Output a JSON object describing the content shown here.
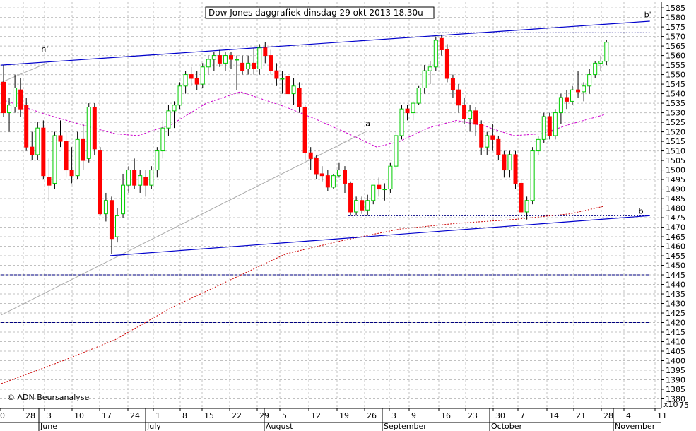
{
  "chart_data": {
    "type": "candlestick",
    "title": "Dow Jones daggrafiek dinsdag 29 okt 2013 18.30u",
    "copyright": "© ADN Beursanalyse",
    "y_multiplier_label": "x10",
    "y_scale_extra_label": "75",
    "ylim": [
      1375,
      1588
    ],
    "y_ticks": [
      1380,
      1385,
      1390,
      1395,
      1400,
      1405,
      1410,
      1415,
      1420,
      1425,
      1430,
      1435,
      1440,
      1445,
      1450,
      1455,
      1460,
      1465,
      1470,
      1475,
      1480,
      1485,
      1490,
      1495,
      1500,
      1505,
      1510,
      1515,
      1520,
      1525,
      1530,
      1535,
      1540,
      1545,
      1550,
      1555,
      1560,
      1565,
      1570,
      1575,
      1580,
      1585
    ],
    "x_day_labels": [
      "0",
      "28",
      "3",
      "10",
      "17",
      "24",
      "1",
      "8",
      "15",
      "22",
      "29",
      "5",
      "12",
      "19",
      "26",
      "3",
      "9",
      "16",
      "23",
      "30",
      "7",
      "14",
      "21",
      "28",
      "4",
      "11"
    ],
    "x_month_labels": [
      "June",
      "July",
      "August",
      "September",
      "October",
      "November"
    ],
    "trendline_labels": [
      "n'",
      "b'",
      "a",
      "b"
    ],
    "grid": true,
    "colors": {
      "up_candle": "#00cc00",
      "down_candle": "#ff0000",
      "trend_channel": "#0000cc",
      "ma_short": "#cc00cc",
      "ma_long": "#cc0000",
      "support_line": "#000080",
      "trend_a": "#aaaaaa"
    },
    "candles": [
      {
        "o": 1546,
        "h": 1555,
        "l": 1528,
        "c": 1530
      },
      {
        "o": 1530,
        "h": 1538,
        "l": 1520,
        "c": 1534
      },
      {
        "o": 1533,
        "h": 1550,
        "l": 1530,
        "c": 1543
      },
      {
        "o": 1542,
        "h": 1548,
        "l": 1528,
        "c": 1532
      },
      {
        "o": 1534,
        "h": 1538,
        "l": 1510,
        "c": 1512
      },
      {
        "o": 1512,
        "h": 1520,
        "l": 1505,
        "c": 1508
      },
      {
        "o": 1508,
        "h": 1525,
        "l": 1505,
        "c": 1522
      },
      {
        "o": 1522,
        "h": 1526,
        "l": 1495,
        "c": 1497
      },
      {
        "o": 1496,
        "h": 1506,
        "l": 1484,
        "c": 1492
      },
      {
        "o": 1493,
        "h": 1520,
        "l": 1490,
        "c": 1518
      },
      {
        "o": 1518,
        "h": 1526,
        "l": 1512,
        "c": 1515
      },
      {
        "o": 1515,
        "h": 1520,
        "l": 1496,
        "c": 1500
      },
      {
        "o": 1500,
        "h": 1512,
        "l": 1493,
        "c": 1497
      },
      {
        "o": 1497,
        "h": 1520,
        "l": 1495,
        "c": 1516
      },
      {
        "o": 1516,
        "h": 1524,
        "l": 1500,
        "c": 1505
      },
      {
        "o": 1506,
        "h": 1535,
        "l": 1504,
        "c": 1533
      },
      {
        "o": 1533,
        "h": 1535,
        "l": 1508,
        "c": 1511
      },
      {
        "o": 1510,
        "h": 1512,
        "l": 1476,
        "c": 1477
      },
      {
        "o": 1477,
        "h": 1488,
        "l": 1473,
        "c": 1484
      },
      {
        "o": 1484,
        "h": 1486,
        "l": 1456,
        "c": 1464
      },
      {
        "o": 1465,
        "h": 1480,
        "l": 1462,
        "c": 1476
      },
      {
        "o": 1477,
        "h": 1498,
        "l": 1475,
        "c": 1492
      },
      {
        "o": 1492,
        "h": 1502,
        "l": 1488,
        "c": 1500
      },
      {
        "o": 1500,
        "h": 1506,
        "l": 1490,
        "c": 1492
      },
      {
        "o": 1492,
        "h": 1500,
        "l": 1488,
        "c": 1497
      },
      {
        "o": 1496,
        "h": 1500,
        "l": 1486,
        "c": 1492
      },
      {
        "o": 1492,
        "h": 1502,
        "l": 1490,
        "c": 1500
      },
      {
        "o": 1500,
        "h": 1512,
        "l": 1496,
        "c": 1510
      },
      {
        "o": 1510,
        "h": 1526,
        "l": 1506,
        "c": 1522
      },
      {
        "o": 1522,
        "h": 1534,
        "l": 1518,
        "c": 1531
      },
      {
        "o": 1531,
        "h": 1536,
        "l": 1522,
        "c": 1534
      },
      {
        "o": 1534,
        "h": 1546,
        "l": 1532,
        "c": 1544
      },
      {
        "o": 1544,
        "h": 1552,
        "l": 1540,
        "c": 1550
      },
      {
        "o": 1550,
        "h": 1554,
        "l": 1544,
        "c": 1548
      },
      {
        "o": 1548,
        "h": 1552,
        "l": 1542,
        "c": 1545
      },
      {
        "o": 1545,
        "h": 1556,
        "l": 1543,
        "c": 1554
      },
      {
        "o": 1554,
        "h": 1560,
        "l": 1550,
        "c": 1558
      },
      {
        "o": 1558,
        "h": 1562,
        "l": 1552,
        "c": 1560
      },
      {
        "o": 1560,
        "h": 1563,
        "l": 1554,
        "c": 1556
      },
      {
        "o": 1556,
        "h": 1562,
        "l": 1552,
        "c": 1560
      },
      {
        "o": 1560,
        "h": 1562,
        "l": 1553,
        "c": 1558
      },
      {
        "o": 1558,
        "h": 1560,
        "l": 1542,
        "c": 1558
      },
      {
        "o": 1556,
        "h": 1560,
        "l": 1550,
        "c": 1552
      },
      {
        "o": 1553,
        "h": 1560,
        "l": 1550,
        "c": 1556
      },
      {
        "o": 1556,
        "h": 1564,
        "l": 1550,
        "c": 1553
      },
      {
        "o": 1553,
        "h": 1566,
        "l": 1550,
        "c": 1564
      },
      {
        "o": 1564,
        "h": 1567,
        "l": 1556,
        "c": 1560
      },
      {
        "o": 1560,
        "h": 1563,
        "l": 1550,
        "c": 1552
      },
      {
        "o": 1552,
        "h": 1556,
        "l": 1544,
        "c": 1548
      },
      {
        "o": 1548,
        "h": 1552,
        "l": 1540,
        "c": 1548
      },
      {
        "o": 1549,
        "h": 1552,
        "l": 1536,
        "c": 1540
      },
      {
        "o": 1540,
        "h": 1548,
        "l": 1534,
        "c": 1544
      },
      {
        "o": 1543,
        "h": 1546,
        "l": 1530,
        "c": 1533
      },
      {
        "o": 1533,
        "h": 1534,
        "l": 1505,
        "c": 1509
      },
      {
        "o": 1509,
        "h": 1512,
        "l": 1500,
        "c": 1506
      },
      {
        "o": 1506,
        "h": 1508,
        "l": 1495,
        "c": 1498
      },
      {
        "o": 1498,
        "h": 1502,
        "l": 1494,
        "c": 1497
      },
      {
        "o": 1497,
        "h": 1500,
        "l": 1489,
        "c": 1491
      },
      {
        "o": 1491,
        "h": 1498,
        "l": 1490,
        "c": 1497
      },
      {
        "o": 1497,
        "h": 1504,
        "l": 1496,
        "c": 1500
      },
      {
        "o": 1500,
        "h": 1502,
        "l": 1488,
        "c": 1493
      },
      {
        "o": 1493,
        "h": 1494,
        "l": 1476,
        "c": 1478
      },
      {
        "o": 1478,
        "h": 1486,
        "l": 1476,
        "c": 1484
      },
      {
        "o": 1484,
        "h": 1486,
        "l": 1477,
        "c": 1479
      },
      {
        "o": 1479,
        "h": 1487,
        "l": 1476,
        "c": 1484
      },
      {
        "o": 1484,
        "h": 1492,
        "l": 1482,
        "c": 1492
      },
      {
        "o": 1492,
        "h": 1496,
        "l": 1486,
        "c": 1490
      },
      {
        "o": 1490,
        "h": 1493,
        "l": 1484,
        "c": 1490
      },
      {
        "o": 1490,
        "h": 1504,
        "l": 1488,
        "c": 1502
      },
      {
        "o": 1502,
        "h": 1520,
        "l": 1500,
        "c": 1518
      },
      {
        "o": 1518,
        "h": 1534,
        "l": 1516,
        "c": 1532
      },
      {
        "o": 1532,
        "h": 1534,
        "l": 1526,
        "c": 1530
      },
      {
        "o": 1530,
        "h": 1536,
        "l": 1526,
        "c": 1535
      },
      {
        "o": 1535,
        "h": 1544,
        "l": 1534,
        "c": 1543
      },
      {
        "o": 1543,
        "h": 1555,
        "l": 1540,
        "c": 1552
      },
      {
        "o": 1552,
        "h": 1557,
        "l": 1545,
        "c": 1554
      },
      {
        "o": 1554,
        "h": 1570,
        "l": 1552,
        "c": 1568
      },
      {
        "o": 1569,
        "h": 1571,
        "l": 1560,
        "c": 1563
      },
      {
        "o": 1563,
        "h": 1566,
        "l": 1546,
        "c": 1548
      },
      {
        "o": 1548,
        "h": 1550,
        "l": 1538,
        "c": 1542
      },
      {
        "o": 1542,
        "h": 1545,
        "l": 1530,
        "c": 1534
      },
      {
        "o": 1534,
        "h": 1538,
        "l": 1524,
        "c": 1527
      },
      {
        "o": 1527,
        "h": 1534,
        "l": 1520,
        "c": 1531
      },
      {
        "o": 1531,
        "h": 1533,
        "l": 1518,
        "c": 1524
      },
      {
        "o": 1524,
        "h": 1526,
        "l": 1508,
        "c": 1512
      },
      {
        "o": 1512,
        "h": 1520,
        "l": 1508,
        "c": 1518
      },
      {
        "o": 1518,
        "h": 1524,
        "l": 1510,
        "c": 1516
      },
      {
        "o": 1516,
        "h": 1518,
        "l": 1505,
        "c": 1508
      },
      {
        "o": 1508,
        "h": 1510,
        "l": 1496,
        "c": 1500
      },
      {
        "o": 1500,
        "h": 1510,
        "l": 1496,
        "c": 1508
      },
      {
        "o": 1508,
        "h": 1510,
        "l": 1490,
        "c": 1493
      },
      {
        "o": 1493,
        "h": 1495,
        "l": 1476,
        "c": 1478
      },
      {
        "o": 1478,
        "h": 1486,
        "l": 1474,
        "c": 1484
      },
      {
        "o": 1484,
        "h": 1512,
        "l": 1482,
        "c": 1510
      },
      {
        "o": 1510,
        "h": 1518,
        "l": 1508,
        "c": 1516
      },
      {
        "o": 1516,
        "h": 1530,
        "l": 1514,
        "c": 1528
      },
      {
        "o": 1528,
        "h": 1530,
        "l": 1516,
        "c": 1518
      },
      {
        "o": 1518,
        "h": 1532,
        "l": 1516,
        "c": 1530
      },
      {
        "o": 1530,
        "h": 1540,
        "l": 1524,
        "c": 1538
      },
      {
        "o": 1538,
        "h": 1542,
        "l": 1532,
        "c": 1536
      },
      {
        "o": 1536,
        "h": 1544,
        "l": 1534,
        "c": 1542
      },
      {
        "o": 1542,
        "h": 1552,
        "l": 1538,
        "c": 1541
      },
      {
        "o": 1541,
        "h": 1546,
        "l": 1536,
        "c": 1544
      },
      {
        "o": 1544,
        "h": 1553,
        "l": 1540,
        "c": 1550
      },
      {
        "o": 1550,
        "h": 1557,
        "l": 1548,
        "c": 1556
      },
      {
        "o": 1556,
        "h": 1560,
        "l": 1552,
        "c": 1557
      },
      {
        "o": 1557,
        "h": 1568,
        "l": 1555,
        "c": 1567
      }
    ],
    "ma_short": [
      [
        0,
        1537
      ],
      [
        8,
        1529
      ],
      [
        15,
        1523
      ],
      [
        20,
        1519
      ],
      [
        24,
        1518
      ],
      [
        30,
        1524
      ],
      [
        36,
        1535
      ],
      [
        42,
        1541
      ],
      [
        47,
        1536
      ],
      [
        50,
        1533
      ],
      [
        55,
        1527
      ],
      [
        61,
        1519
      ],
      [
        66,
        1512
      ],
      [
        70,
        1515
      ],
      [
        75,
        1522
      ],
      [
        80,
        1526
      ],
      [
        85,
        1523
      ],
      [
        90,
        1518
      ],
      [
        95,
        1519
      ],
      [
        100,
        1524
      ],
      [
        106,
        1529
      ]
    ],
    "ma_long": [
      [
        0,
        1388
      ],
      [
        10,
        1399
      ],
      [
        20,
        1411
      ],
      [
        30,
        1428
      ],
      [
        40,
        1442
      ],
      [
        50,
        1456
      ],
      [
        60,
        1463
      ],
      [
        70,
        1469
      ],
      [
        80,
        1472
      ],
      [
        90,
        1474
      ],
      [
        100,
        1477
      ],
      [
        106,
        1481
      ]
    ],
    "channel_upper": [
      [
        0,
        1555
      ],
      [
        114,
        1578
      ]
    ],
    "channel_lower": [
      [
        19,
        1455
      ],
      [
        114,
        1476
      ]
    ],
    "trend_a": [
      [
        0,
        1424
      ],
      [
        64,
        1520
      ]
    ],
    "trend_n": [
      [
        0,
        1546
      ],
      [
        8,
        1556
      ]
    ],
    "hlines": [
      {
        "y": 1572,
        "x0": 76,
        "x1": 114,
        "style": "dotted"
      },
      {
        "y": 1476,
        "x0": 61,
        "x1": 114,
        "style": "dotted"
      },
      {
        "y": 1445,
        "x0": 0,
        "x1": 114,
        "style": "dashed"
      },
      {
        "y": 1420,
        "x0": 0,
        "x1": 114,
        "style": "dashed"
      }
    ]
  }
}
